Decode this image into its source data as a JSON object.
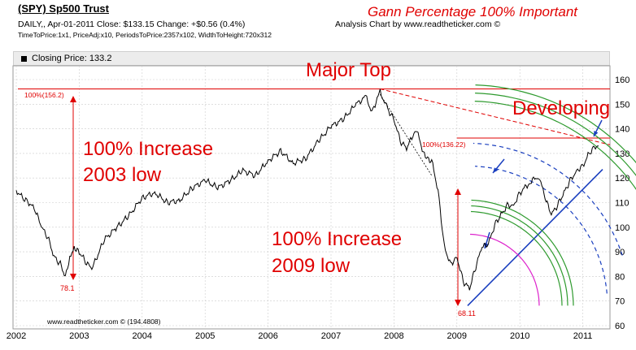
{
  "header": {
    "ticker_title": "(SPY) Sp500 Trust",
    "headline": "Gann Percentage 100% Important",
    "info_line": "DAILY,, Apr-01-2011  Close: $133.15  Change: +$0.56  (0.4%)",
    "analysis_credit": "Analysis Chart by www.readtheticker.com ©",
    "params_line": "TimeToPrice:1x1, PriceAdj:x10, PeriodsToPrice:2357x102, WidthToHeight:720x312"
  },
  "legend": {
    "label": "Closing Price: 133.2"
  },
  "footer": {
    "credit": "www.readtheticker.com © (194.4808)"
  },
  "colors": {
    "price": "#000000",
    "annotation": "#e00000",
    "arc_green": "#2e9a2e",
    "arc_blue": "#1a3fbf",
    "arc_magenta": "#dd22cc",
    "grid": "#cccccc"
  },
  "chart_data": {
    "type": "line",
    "title": "",
    "xlabel": "",
    "ylabel": "",
    "x_ticks": [
      "2002",
      "2003",
      "2004",
      "2005",
      "2006",
      "2007",
      "2008",
      "2009",
      "2010",
      "2011"
    ],
    "y_ticks": [
      60,
      70,
      80,
      90,
      100,
      110,
      120,
      130,
      140,
      150,
      160
    ],
    "xlim": [
      2002.0,
      2011.4
    ],
    "ylim": [
      60,
      165
    ],
    "grid": true,
    "series": [
      {
        "values_x": [
          2002.0,
          2002.1,
          2002.2,
          2002.3,
          2002.4,
          2002.5,
          2002.6,
          2002.7,
          2002.78,
          2002.85,
          2002.92,
          2003.0,
          2003.1,
          2003.2,
          2003.4,
          2003.6,
          2003.8,
          2004.0,
          2004.2,
          2004.4,
          2004.6,
          2004.8,
          2005.0,
          2005.2,
          2005.4,
          2005.6,
          2005.8,
          2006.0,
          2006.2,
          2006.4,
          2006.6,
          2006.8,
          2007.0,
          2007.2,
          2007.4,
          2007.55,
          2007.65,
          2007.78,
          2007.9,
          2008.0,
          2008.1,
          2008.2,
          2008.35,
          2008.5,
          2008.6,
          2008.7,
          2008.8,
          2008.9,
          2009.0,
          2009.1,
          2009.2,
          2009.3,
          2009.4,
          2009.5,
          2009.6,
          2009.7,
          2009.8,
          2009.9,
          2010.0,
          2010.15,
          2010.3,
          2010.4,
          2010.5,
          2010.6,
          2010.7,
          2010.8,
          2010.9,
          2011.0,
          2011.1,
          2011.2,
          2011.25
        ],
        "values_y": [
          115,
          112,
          110,
          107,
          100,
          96,
          88,
          85,
          80,
          88,
          92,
          90,
          86,
          83,
          95,
          100,
          105,
          112,
          114,
          110,
          111,
          116,
          119,
          116,
          119,
          123,
          121,
          127,
          131,
          126,
          128,
          135,
          141,
          144,
          150,
          153,
          147,
          155,
          148,
          144,
          135,
          132,
          140,
          128,
          127,
          115,
          92,
          85,
          88,
          78,
          75,
          84,
          92,
          93,
          101,
          105,
          109,
          109,
          114,
          118,
          121,
          112,
          105,
          109,
          114,
          119,
          123,
          125,
          130,
          133,
          133
        ]
      }
    ],
    "annotations": [
      {
        "text": "Major Top"
      },
      {
        "text": "Developing"
      },
      {
        "text": "100% Increase"
      },
      {
        "text": "2003 low"
      },
      {
        "text": "100% Increase"
      },
      {
        "text": "2009 low"
      },
      {
        "text": "100%(156.2)"
      },
      {
        "text": "100%(136.22)"
      },
      {
        "text": "78.1"
      },
      {
        "text": "68.11"
      }
    ]
  }
}
